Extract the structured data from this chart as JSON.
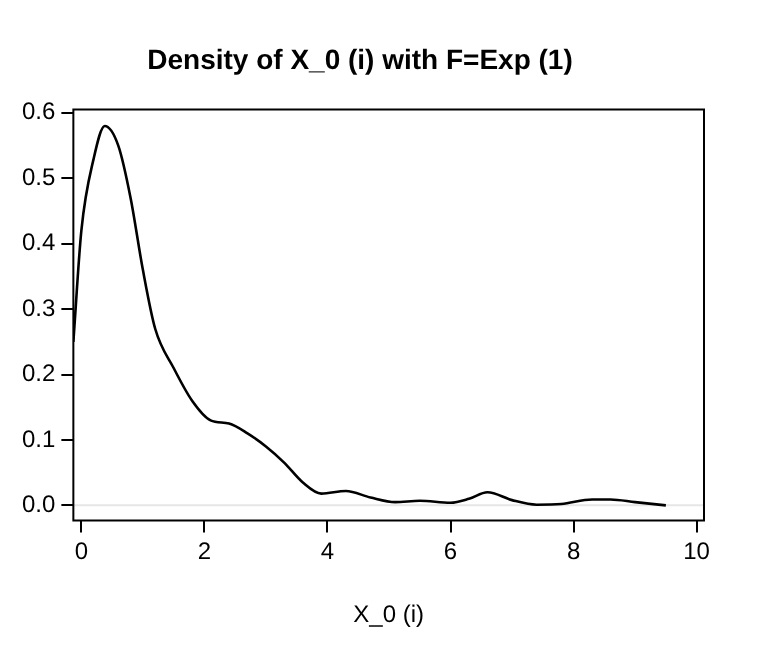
{
  "chart_data": {
    "type": "line",
    "title": "Density of X_0 (i) with F=Exp (1)",
    "xlabel": "X_0 (i)",
    "series": [
      {
        "color": "#000000",
        "x": [
          -0.13,
          0,
          0.2,
          0.38,
          0.6,
          0.8,
          1.0,
          1.2,
          1.5,
          1.8,
          2.1,
          2.4,
          2.7,
          3.0,
          3.3,
          3.6,
          3.9,
          4.3,
          4.7,
          5.1,
          5.5,
          6.0,
          6.3,
          6.6,
          7.0,
          7.4,
          7.8,
          8.3,
          8.6,
          9.0,
          9.5
        ],
        "values": [
          0.25,
          0.42,
          0.53,
          0.58,
          0.55,
          0.47,
          0.36,
          0.27,
          0.21,
          0.16,
          0.13,
          0.125,
          0.11,
          0.09,
          0.065,
          0.035,
          0.018,
          0.022,
          0.012,
          0.005,
          0.007,
          0.004,
          0.01,
          0.02,
          0.008,
          0.001,
          0.002,
          0.009,
          0.009,
          0.005,
          0.0
        ]
      }
    ],
    "xlim": [
      -0.13,
      10.12
    ],
    "xticks": [
      0,
      2,
      4,
      6,
      8,
      10
    ],
    "ylim": [
      -0.023,
      0.605
    ],
    "yticks": [
      {
        "value": 0,
        "label": "0.0"
      },
      0.1,
      0.2,
      0.3,
      0.4,
      0.5,
      0.6
    ],
    "ref_lines": [
      {
        "axis": "y",
        "value": 0,
        "color": "#e6e6e6"
      }
    ],
    "grid": false,
    "legend": false,
    "marker": "none",
    "line_style": "solid"
  }
}
